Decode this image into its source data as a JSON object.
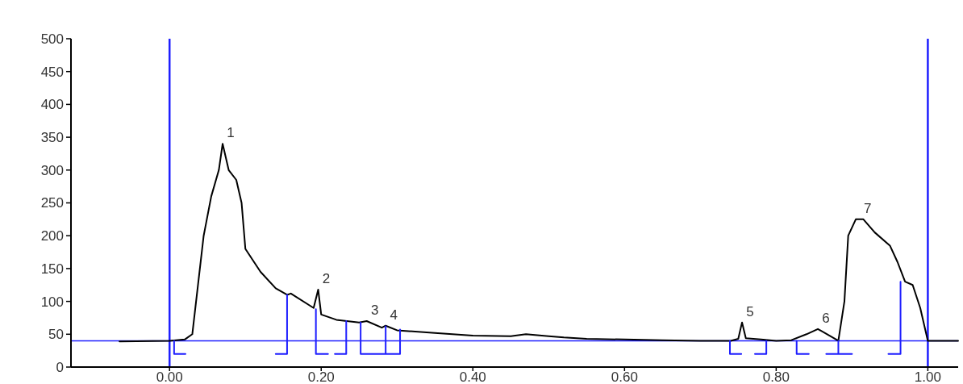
{
  "chart_data": {
    "type": "line",
    "xlim": [
      -0.13,
      1.04
    ],
    "ylim": [
      0,
      500
    ],
    "xticks": [
      {
        "value": 0,
        "label": "0.00"
      },
      {
        "value": 0.2,
        "label": "0.20"
      },
      {
        "value": 0.4,
        "label": "0.40"
      },
      {
        "value": 0.6,
        "label": "0.60"
      },
      {
        "value": 0.8,
        "label": "0.80"
      },
      {
        "value": 1,
        "label": "1.00"
      }
    ],
    "yticks": [
      0,
      50,
      100,
      150,
      200,
      250,
      300,
      350,
      400,
      450,
      500
    ],
    "grid": false,
    "marker": "none",
    "line_style": "solid",
    "series": [
      {
        "color": "#000000",
        "x": [
          -0.066,
          0,
          0.02,
          0.03,
          0.035,
          0.045,
          0.055,
          0.065,
          0.07,
          0.078,
          0.088,
          0.095,
          0.1,
          0.12,
          0.14,
          0.155,
          0.16,
          0.19,
          0.196,
          0.2,
          0.22,
          0.25,
          0.26,
          0.28,
          0.285,
          0.3,
          0.35,
          0.4,
          0.45,
          0.47,
          0.5,
          0.52,
          0.55,
          0.6,
          0.65,
          0.7,
          0.74,
          0.75,
          0.755,
          0.76,
          0.78,
          0.8,
          0.82,
          0.84,
          0.855,
          0.87,
          0.882,
          0.89,
          0.895,
          0.905,
          0.915,
          0.93,
          0.95,
          0.96,
          0.97,
          0.98,
          0.99,
          1,
          1.04
        ],
        "values": [
          39,
          40,
          42,
          50,
          100,
          200,
          260,
          300,
          340,
          300,
          285,
          250,
          180,
          145,
          120,
          110,
          112,
          90,
          118,
          80,
          72,
          68,
          70,
          60,
          63,
          56,
          52,
          48,
          47,
          50,
          47,
          45,
          43,
          42,
          41,
          40,
          40,
          43,
          68,
          44,
          42,
          40,
          41,
          50,
          58,
          48,
          40,
          100,
          200,
          225,
          225,
          205,
          185,
          160,
          130,
          125,
          90,
          40,
          40
        ]
      },
      {
        "color": "#1f1fff",
        "x": [
          0.006,
          0.006,
          0.021,
          null,
          0.14,
          0.155,
          0.155,
          null,
          0.193,
          0.193,
          0.209,
          null,
          0.218,
          0.233,
          0.233,
          null,
          0.252,
          0.252,
          0.285,
          0.285,
          null,
          0.285,
          0.304,
          0.304,
          null,
          0.739,
          0.739,
          0.754,
          null,
          0.772,
          0.787,
          0.787,
          null,
          0.827,
          0.827,
          0.843,
          null,
          0.866,
          0.882,
          0.882,
          0.882,
          0.9,
          null,
          0.948,
          0.964,
          0.964
        ],
        "values": [
          40,
          20,
          20,
          null,
          20,
          20,
          110,
          null,
          88,
          20,
          20,
          null,
          20,
          20,
          70,
          null,
          68,
          20,
          20,
          62,
          null,
          20,
          20,
          57,
          null,
          40,
          20,
          20,
          null,
          20,
          20,
          40,
          null,
          40,
          20,
          20,
          null,
          20,
          20,
          40,
          20,
          20,
          null,
          20,
          20,
          130
        ]
      }
    ],
    "ref_lines": [
      {
        "axis": "y",
        "value": 40,
        "color": "#1f1fff"
      },
      {
        "axis": "x",
        "value": 0,
        "color": "#1f1fff"
      },
      {
        "axis": "x",
        "value": 1,
        "color": "#1f1fff"
      }
    ],
    "annotations": [
      {
        "text": "1",
        "x": 0.07,
        "y": 340
      },
      {
        "text": "2",
        "x": 0.196,
        "y": 118
      },
      {
        "text": "3",
        "x": 0.26,
        "y": 70
      },
      {
        "text": "4",
        "x": 0.285,
        "y": 63
      },
      {
        "text": "5",
        "x": 0.755,
        "y": 68
      },
      {
        "text": "6",
        "x": 0.855,
        "y": 58
      },
      {
        "text": "7",
        "x": 0.91,
        "y": 225
      }
    ]
  }
}
